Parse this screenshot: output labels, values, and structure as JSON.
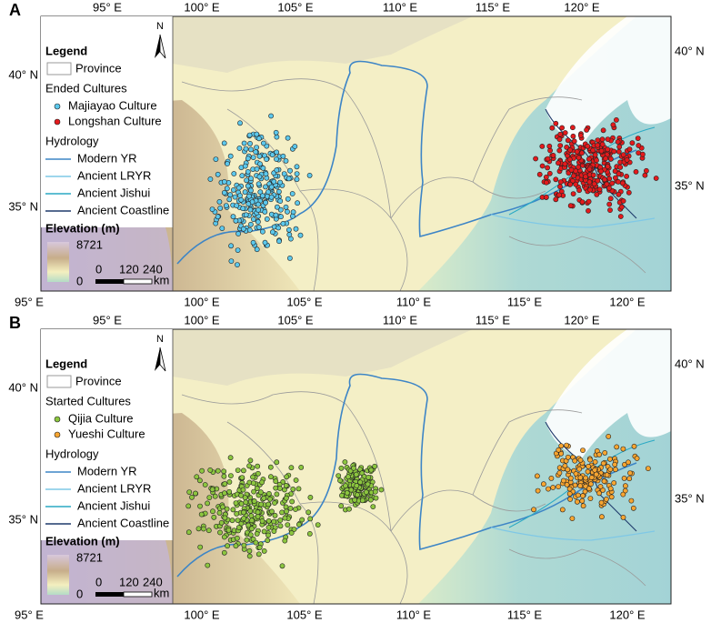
{
  "lon_labels": [
    "95° E",
    "100° E",
    "105° E",
    "110° E",
    "115° E",
    "120° E"
  ],
  "lat_labels": [
    "40° N",
    "35° N"
  ],
  "panels": [
    {
      "label": "A",
      "north": "N",
      "legend": {
        "title": "Legend",
        "province": "Province",
        "group_title": "Ended Cultures",
        "cultures": [
          "Majiayao Culture",
          "Longshan Culture"
        ],
        "hydrology_title": "Hydrology",
        "hydrology": [
          "Modern YR",
          "Ancient LRYR",
          "Ancient Jishui",
          "Ancient Coastline"
        ],
        "elevation_title": "Elevation (m)",
        "elevation_max": 8721,
        "elevation_min": 0
      },
      "scale": [
        0,
        120,
        240
      ],
      "scale_unit": "km"
    },
    {
      "label": "B",
      "north": "N",
      "legend": {
        "title": "Legend",
        "province": "Province",
        "group_title": "Started Cultures",
        "cultures": [
          "Qijia Culture",
          "Yueshi Culture"
        ],
        "hydrology_title": "Hydrology",
        "hydrology": [
          "Modern YR",
          "Ancient LRYR",
          "Ancient Jishui",
          "Ancient Coastline"
        ],
        "elevation_title": "Elevation (m)",
        "elevation_max": 8721,
        "elevation_min": 0
      },
      "scale": [
        0,
        120,
        240
      ],
      "scale_unit": "km"
    }
  ]
}
